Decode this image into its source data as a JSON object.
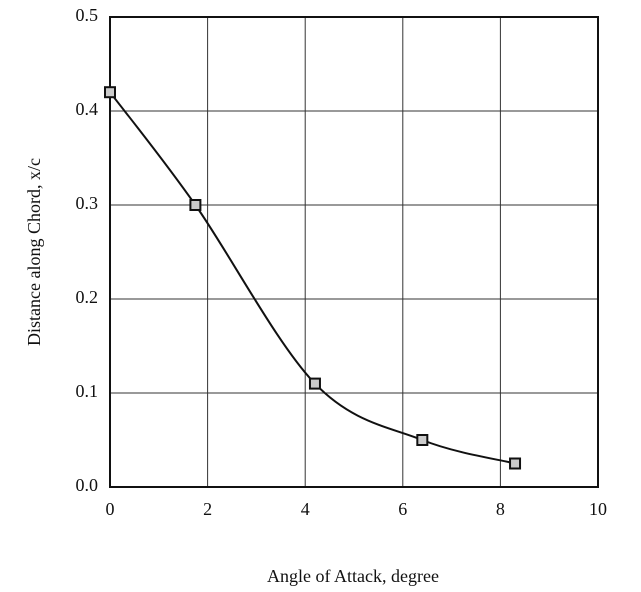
{
  "chart_data": {
    "type": "line",
    "xlabel": "Angle of Attack, degree",
    "ylabel": "Distance along Chord, x/c",
    "x": [
      0,
      1.75,
      4.2,
      6.4,
      8.3
    ],
    "series": [
      {
        "color": "#111111",
        "values": [
          0.42,
          0.3,
          0.11,
          0.05,
          0.025
        ]
      }
    ],
    "xlim": [
      0,
      10
    ],
    "xticks": [
      0,
      2,
      4,
      6,
      8,
      10
    ],
    "ylim": [
      0,
      0.5
    ],
    "yticks": [
      {
        "value": 0,
        "label": "0.0"
      },
      0.1,
      0.2,
      0.3,
      0.4,
      0.5
    ],
    "grid": true,
    "marker": "square"
  }
}
